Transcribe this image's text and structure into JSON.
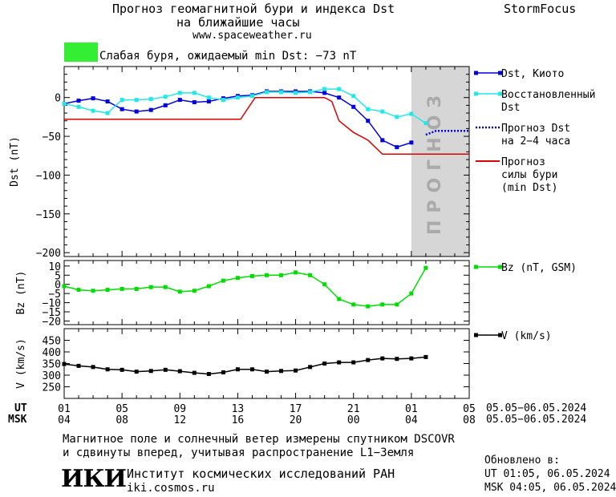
{
  "header": {
    "title_line1": "Прогноз геомагнитной бури и индекса Dst",
    "title_line2": "на ближайшие часы",
    "url": "www.spaceweather.ru",
    "brand": "StormFocus"
  },
  "status": {
    "color": "#33ee33",
    "text": "Слабая буря, ожидаемый min Dst: −73 nT"
  },
  "forecast_label": "ПРОГНОЗ",
  "x_axis": {
    "ut_label": "UT",
    "msk_label": "MSK",
    "ut_ticks": [
      "01",
      "05",
      "09",
      "13",
      "17",
      "21",
      "01",
      "05"
    ],
    "msk_ticks": [
      "04",
      "08",
      "12",
      "16",
      "20",
      "00",
      "04",
      "08"
    ],
    "ut_range": "05.05−06.05.2024",
    "msk_range": "05.05−06.05.2024"
  },
  "chart_data": [
    {
      "type": "line",
      "ylabel": "Dst (nT)",
      "ylim": [
        -205,
        40
      ],
      "yticks": [
        "0",
        "−50",
        "−100",
        "−150",
        "−200"
      ],
      "x_hours_ut": "hours since 05.05.2024 01:00 UT",
      "forecast_region_hours": [
        24,
        28
      ],
      "series": [
        {
          "name": "Dst, Киото",
          "color": "#0000dd",
          "x": [
            0,
            1,
            2,
            3,
            4,
            5,
            6,
            7,
            8,
            9,
            10,
            11,
            12,
            13,
            14,
            15,
            16,
            17,
            18,
            19,
            20,
            21,
            22,
            23,
            24
          ],
          "y": [
            -8,
            -4,
            -1,
            -5,
            -15,
            -18,
            -16,
            -10,
            -3,
            -6,
            -5,
            -1,
            2,
            3,
            8,
            8,
            8,
            8,
            6,
            0,
            -12,
            -30,
            -55,
            -64,
            -58
          ]
        },
        {
          "name": "Восстановленный Dst",
          "color": "#22e8e8",
          "x": [
            0,
            1,
            2,
            3,
            4,
            5,
            6,
            7,
            8,
            9,
            10,
            11,
            12,
            13,
            14,
            15,
            16,
            17,
            18,
            19,
            20,
            21,
            22,
            23,
            24,
            25
          ],
          "y": [
            -8,
            -12,
            -17,
            -20,
            -3,
            -3,
            -2,
            1,
            6,
            6,
            0,
            -3,
            0,
            2,
            7,
            7,
            6,
            7,
            11,
            11,
            2,
            -15,
            -18,
            -25,
            -21,
            -33
          ]
        },
        {
          "name": "Прогноз Dst на 2−4 часа",
          "color": "#0000dd",
          "dashed": true,
          "x": [
            25,
            25.7,
            28
          ],
          "y": [
            -48,
            -43,
            -43
          ]
        },
        {
          "name": "Прогноз силы бури (min Dst)",
          "color": "#dd0000",
          "x": [
            0,
            12.2,
            13.2,
            17,
            18,
            18.5,
            19,
            20,
            21,
            22,
            23,
            28
          ],
          "y": [
            -28,
            -28,
            0,
            0,
            0,
            -5,
            -30,
            -45,
            -55,
            -73,
            -73,
            -73
          ]
        }
      ],
      "legend": [
        {
          "label_lines": [
            "Dst, Киото"
          ],
          "color": "#0000dd",
          "style": "marker"
        },
        {
          "label_lines": [
            "Восстановленный",
            "Dst"
          ],
          "color": "#22e8e8",
          "style": "marker"
        },
        {
          "label_lines": [
            "Прогноз Dst",
            "на 2−4 часа"
          ],
          "color": "#0000dd",
          "style": "dotted"
        },
        {
          "label_lines": [
            "Прогноз",
            "силы бури",
            "(min Dst)"
          ],
          "color": "#dd0000",
          "style": "line"
        }
      ]
    },
    {
      "type": "line",
      "ylabel": "Bz (nT)",
      "ylim": [
        -22,
        13
      ],
      "yticks": [
        "10",
        "5",
        "0",
        "−5",
        "−10",
        "−15",
        "−20"
      ],
      "series": [
        {
          "name": "Bz (nT, GSM)",
          "color": "#00dd00",
          "x": [
            0,
            1,
            2,
            3,
            4,
            5,
            6,
            7,
            8,
            9,
            10,
            11,
            12,
            13,
            14,
            15,
            16,
            17,
            18,
            19,
            20,
            21,
            22,
            23,
            24,
            25
          ],
          "y": [
            -1,
            -3,
            -3.5,
            -3,
            -2.5,
            -2.5,
            -1.5,
            -1.5,
            -4,
            -3.5,
            -1,
            2,
            3.5,
            4.5,
            5,
            5,
            6.5,
            5,
            0,
            -8,
            -11,
            -12,
            -11,
            -11,
            -5,
            9
          ]
        }
      ],
      "legend": [
        {
          "label_lines": [
            "Bz (nT, GSM)"
          ],
          "color": "#00dd00",
          "style": "marker"
        }
      ]
    },
    {
      "type": "line",
      "ylabel": "V (km/s)",
      "ylim": [
        200,
        500
      ],
      "yticks": [
        "450",
        "400",
        "350",
        "300",
        "250"
      ],
      "series": [
        {
          "name": "V (km/s)",
          "color": "#000000",
          "x": [
            0,
            1,
            2,
            3,
            4,
            5,
            6,
            7,
            8,
            9,
            10,
            11,
            12,
            13,
            14,
            15,
            16,
            17,
            18,
            19,
            20,
            21,
            22,
            23,
            24,
            25
          ],
          "y": [
            348,
            340,
            335,
            325,
            323,
            315,
            318,
            323,
            317,
            310,
            305,
            312,
            325,
            325,
            315,
            318,
            320,
            335,
            350,
            355,
            355,
            365,
            372,
            370,
            372,
            378
          ]
        }
      ],
      "legend": [
        {
          "label_lines": [
            "V (km/s)"
          ],
          "color": "#000000",
          "style": "marker"
        }
      ]
    }
  ],
  "footer": {
    "line1": "Магнитное поле и солнечный ветер измерены спутником DSCOVR",
    "line2": "и сдвинуты вперед, учитывая распространение L1−Земля",
    "updated_label": "Обновлено в:",
    "updated_ut": "UT  01:05, 06.05.2024",
    "updated_msk": "MSK 04:05, 06.05.2024",
    "logo_text": "ИКИ",
    "institute": "Институт космических исследований РАН",
    "site": "iki.cosmos.ru"
  }
}
